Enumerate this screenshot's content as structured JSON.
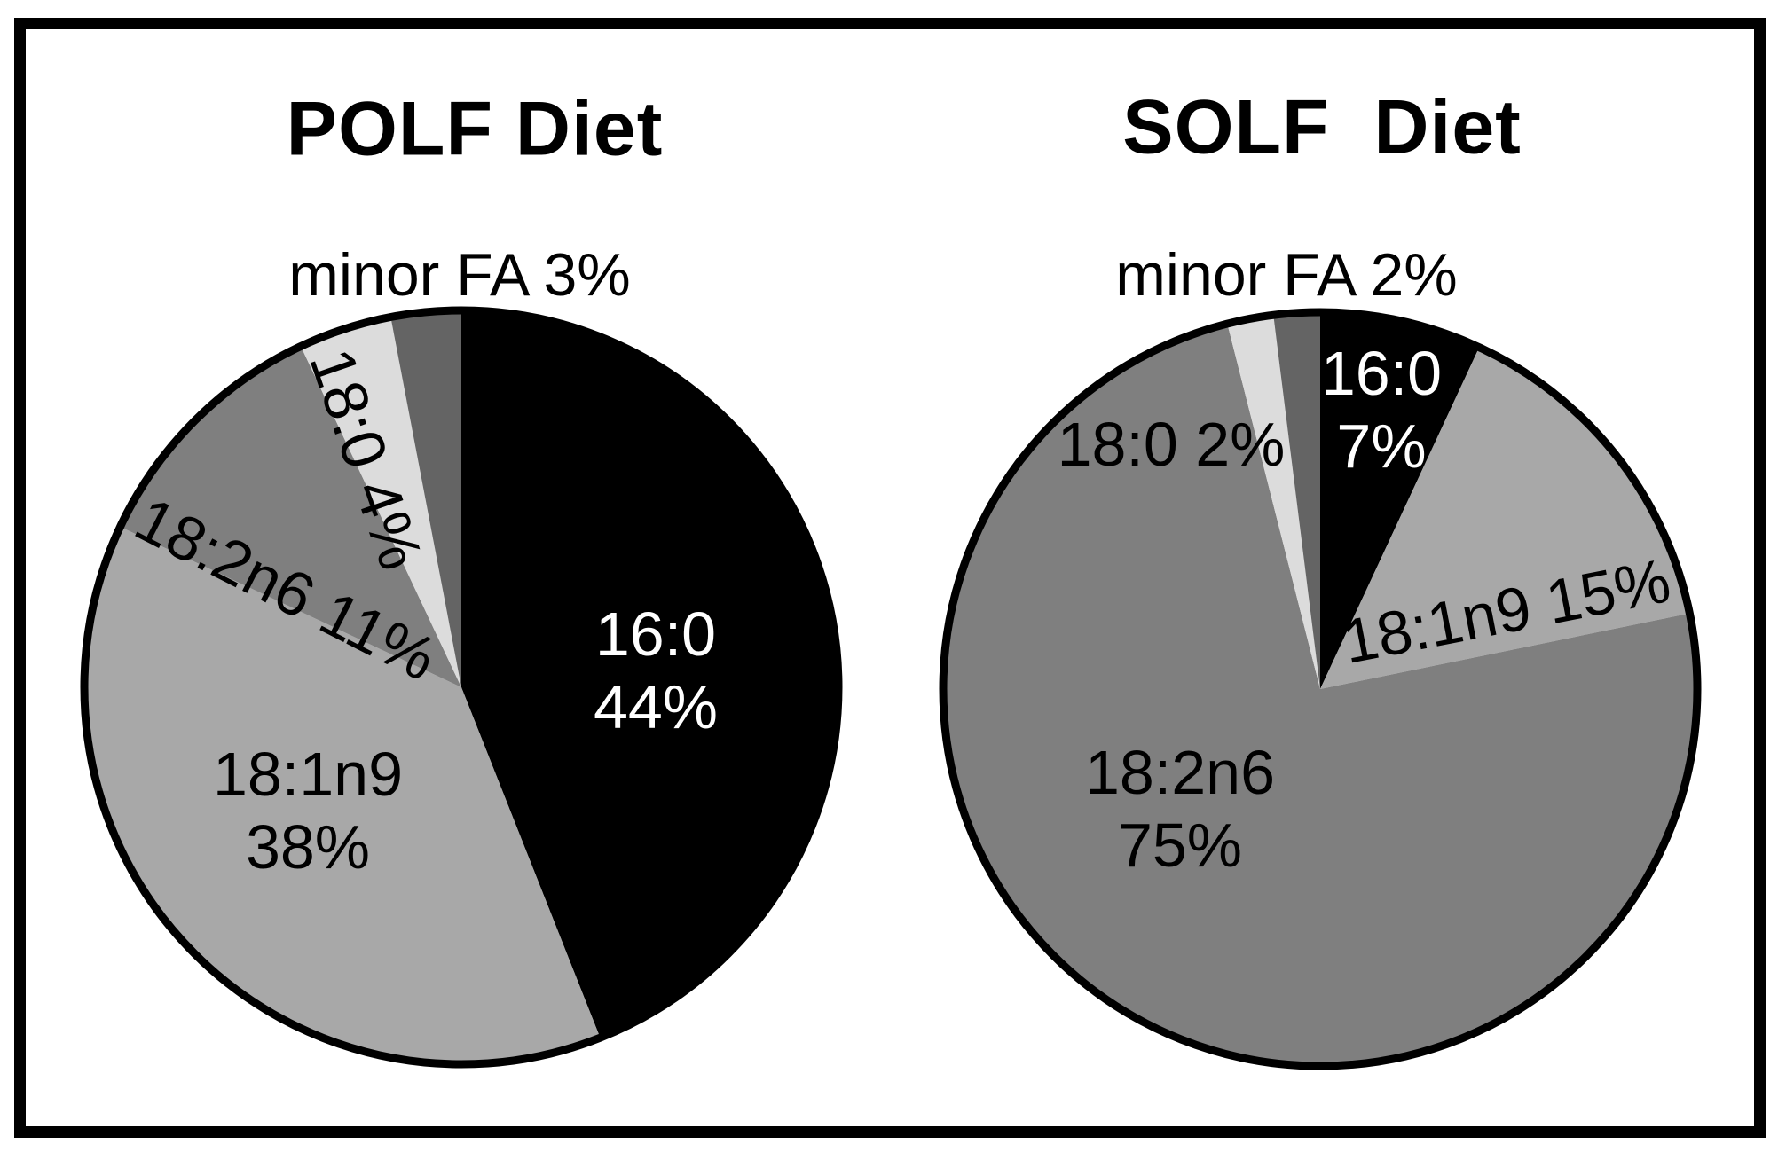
{
  "figure": {
    "background": "#ffffff",
    "frame_color": "#000000"
  },
  "chart_data": [
    {
      "type": "pie",
      "title": "POLF Diet",
      "categories": [
        "16:0",
        "18:1n9",
        "18:2n6",
        "18:0",
        "minor FA"
      ],
      "values": [
        44,
        38,
        11,
        4,
        3
      ],
      "unit": "%",
      "colors": [
        "#000000",
        "#a8a8a8",
        "#7f7f7f",
        "#dcdcdc",
        "#646464"
      ],
      "start_angle_deg": 0,
      "direction": "clockwise",
      "outline_color": "#000000",
      "labels": {
        "title": "POLF Diet",
        "minor_fa": "minor FA 3%",
        "s18_0": "18:0 4%",
        "s18_2n6": "18:2n6 11%",
        "s18_1n9": "18:1n9\n38%",
        "s16_0": "16:0\n44%"
      }
    },
    {
      "type": "pie",
      "title": "SOLF  Diet",
      "categories": [
        "16:0",
        "18:1n9",
        "18:2n6",
        "18:0",
        "minor FA"
      ],
      "values": [
        7,
        15,
        75,
        2,
        2
      ],
      "unit": "%",
      "colors": [
        "#000000",
        "#a8a8a8",
        "#7f7f7f",
        "#dcdcdc",
        "#646464"
      ],
      "start_angle_deg": 0,
      "direction": "clockwise",
      "outline_color": "#000000",
      "labels": {
        "title": "SOLF  Diet",
        "minor_fa": "minor FA 2%",
        "s18_0": "18:0 2%",
        "s16_0": "16:0\n7%",
        "s18_1n9": "18:1n9 15%",
        "s18_2n6": "18:2n6\n75%"
      }
    }
  ]
}
